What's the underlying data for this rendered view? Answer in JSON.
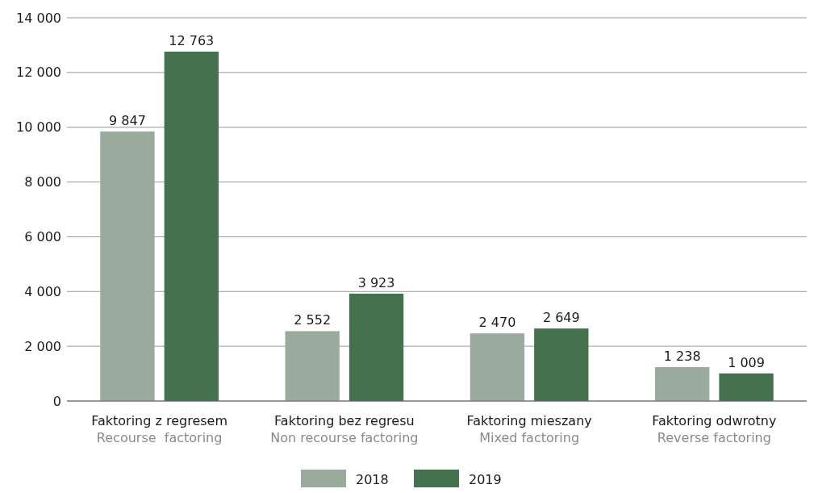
{
  "chart_data": {
    "type": "bar",
    "categories": [
      "Faktoring z regresem\nRecourse  factoring",
      "Faktoring bez regresu\nNon recourse factoring",
      "Faktoring mieszany\nMixed factoring",
      "Faktoring odwrotny\nReverse factoring"
    ],
    "series": [
      {
        "name": "2018",
        "color": "#9aab9d",
        "values": [
          9847,
          2552,
          2470,
          1238
        ],
        "value_labels": [
          "9 847",
          "2 552",
          "2 470",
          "1 238"
        ]
      },
      {
        "name": "2019",
        "color": "#44714e",
        "values": [
          12763,
          3923,
          2649,
          1009
        ],
        "value_labels": [
          "12 763",
          "3 923",
          "2 649",
          "1 009"
        ]
      }
    ],
    "ylim": [
      0,
      14000
    ],
    "yticks": [
      0,
      {
        "value": 2000,
        "label": "2 000"
      },
      {
        "value": 4000,
        "label": "4 000"
      },
      {
        "value": 6000,
        "label": "6 000"
      },
      {
        "value": 8000,
        "label": "8 000"
      },
      {
        "value": 10000,
        "label": "10 000"
      },
      {
        "value": 12000,
        "label": "12 000"
      },
      {
        "value": 14000,
        "label": "14 000"
      }
    ],
    "grid": "y",
    "legend": "bottom"
  }
}
